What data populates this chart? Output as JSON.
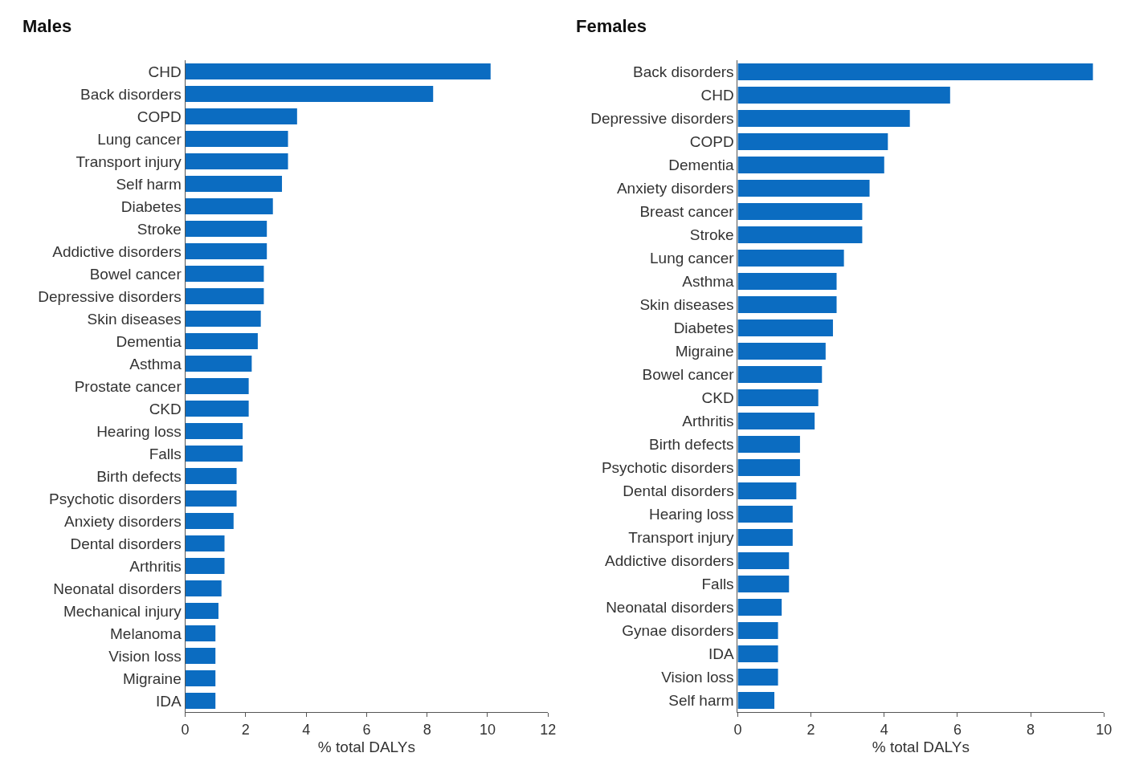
{
  "chart_data": [
    {
      "type": "bar",
      "orientation": "horizontal",
      "title": "Males",
      "xlabel": "% total DALYs",
      "categories": [
        "CHD",
        "Back disorders",
        "COPD",
        "Lung cancer",
        "Transport injury",
        "Self harm",
        "Diabetes",
        "Stroke",
        "Addictive disorders",
        "Bowel cancer",
        "Depressive disorders",
        "Skin diseases",
        "Dementia",
        "Asthma",
        "Prostate cancer",
        "CKD",
        "Hearing loss",
        "Falls",
        "Birth defects",
        "Psychotic disorders",
        "Anxiety disorders",
        "Dental disorders",
        "Arthritis",
        "Neonatal disorders",
        "Mechanical injury",
        "Melanoma",
        "Vision loss",
        "Migraine",
        "IDA"
      ],
      "values": [
        10.1,
        8.2,
        3.7,
        3.4,
        3.4,
        3.2,
        2.9,
        2.7,
        2.7,
        2.6,
        2.6,
        2.5,
        2.4,
        2.2,
        2.1,
        2.1,
        1.9,
        1.9,
        1.7,
        1.7,
        1.6,
        1.3,
        1.3,
        1.2,
        1.1,
        1.0,
        1.0,
        1.0,
        1.0
      ],
      "color": "#0b6cc1",
      "xlim": [
        0,
        12
      ],
      "xticks": [
        0,
        2,
        4,
        6,
        8,
        10,
        12
      ]
    },
    {
      "type": "bar",
      "orientation": "horizontal",
      "title": "Females",
      "xlabel": "% total DALYs",
      "categories": [
        "Back disorders",
        "CHD",
        "Depressive disorders",
        "COPD",
        "Dementia",
        "Anxiety disorders",
        "Breast cancer",
        "Stroke",
        "Lung cancer",
        "Asthma",
        "Skin diseases",
        "Diabetes",
        "Migraine",
        "Bowel cancer",
        "CKD",
        "Arthritis",
        "Birth defects",
        "Psychotic disorders",
        "Dental disorders",
        "Hearing loss",
        "Transport injury",
        "Addictive disorders",
        "Falls",
        "Neonatal disorders",
        "Gynae disorders",
        "IDA",
        "Vision loss",
        "Self harm"
      ],
      "values": [
        9.7,
        5.8,
        4.7,
        4.1,
        4.0,
        3.6,
        3.4,
        3.4,
        2.9,
        2.7,
        2.7,
        2.6,
        2.4,
        2.3,
        2.2,
        2.1,
        1.7,
        1.7,
        1.6,
        1.5,
        1.5,
        1.4,
        1.4,
        1.2,
        1.1,
        1.1,
        1.1,
        1.0
      ],
      "color": "#0b6cc1",
      "xlim": [
        0,
        10
      ],
      "xticks": [
        0,
        2,
        4,
        6,
        8,
        10
      ]
    }
  ]
}
